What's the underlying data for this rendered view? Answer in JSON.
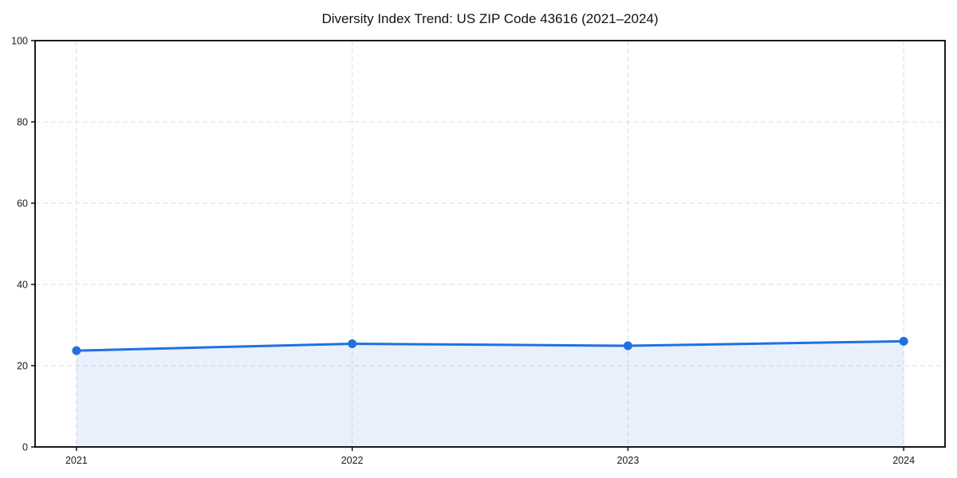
{
  "chart_data": {
    "type": "area",
    "title": "Diversity Index Trend: US ZIP Code 43616 (2021–2024)",
    "x": [
      "2021",
      "2022",
      "2023",
      "2024"
    ],
    "series": [
      {
        "name": "Diversity Index",
        "values": [
          23.7,
          25.4,
          24.9,
          26.0
        ]
      }
    ],
    "xlabel": "",
    "ylabel": "",
    "ylim": [
      0,
      100
    ],
    "yticks": [
      0,
      20,
      40,
      60,
      80,
      100
    ],
    "grid": "dashed-both-axes",
    "legend_position": "none",
    "line_color": "#2170e0",
    "fill_color": "#2170e0",
    "fill_opacity": 0.1,
    "grid_color": "#d9d9d9",
    "spine_color": "#000000",
    "marker": "circle"
  }
}
